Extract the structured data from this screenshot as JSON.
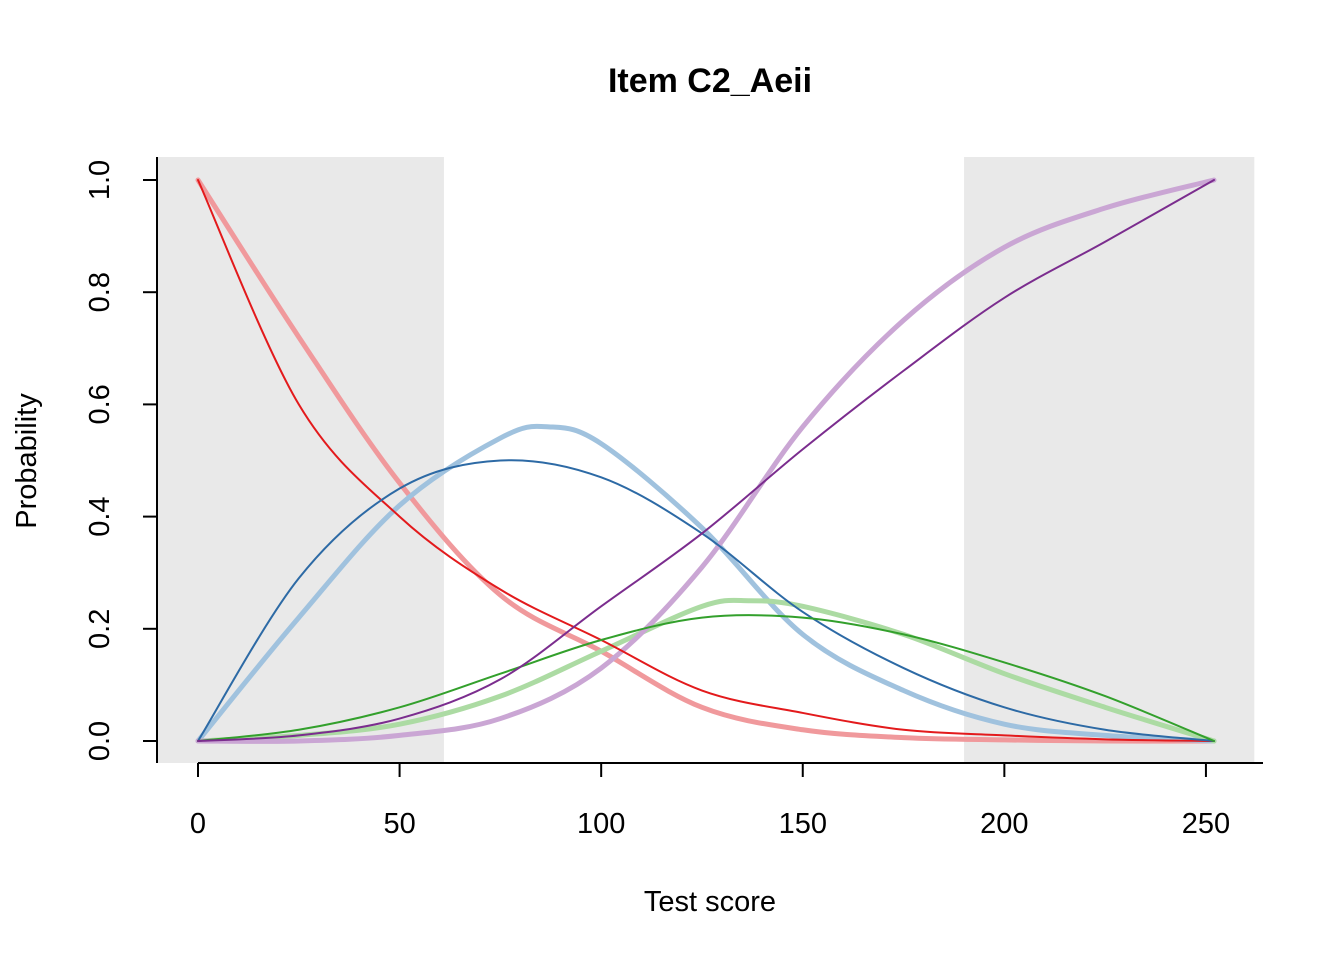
{
  "chart_data": {
    "type": "line",
    "title": "Item C2_Aeii",
    "xlabel": "Test score",
    "ylabel": "Probability",
    "xlim": [
      0,
      252
    ],
    "ylim": [
      0,
      1
    ],
    "xticks": [
      0,
      50,
      100,
      150,
      200,
      250
    ],
    "yticks": [
      0.0,
      0.2,
      0.4,
      0.6,
      0.8,
      1.0
    ],
    "ytick_labels": [
      "0.0",
      "0.2",
      "0.4",
      "0.6",
      "0.8",
      "1.0"
    ],
    "shaded_regions": [
      {
        "name": "low-score-band",
        "x_range": [
          -10,
          61
        ],
        "color": "#e9e9e9"
      },
      {
        "name": "high-score-band",
        "x_range": [
          190,
          262
        ],
        "color": "#e9e9e9"
      }
    ],
    "series": [
      {
        "name": "category-0-smooth",
        "color": "#f0999c",
        "style": "thick",
        "x": [
          0,
          25,
          50,
          75,
          100,
          125,
          150,
          175,
          200,
          225,
          252
        ],
        "values": [
          1.0,
          0.72,
          0.46,
          0.26,
          0.16,
          0.06,
          0.02,
          0.006,
          0.002,
          0.0,
          0.0
        ]
      },
      {
        "name": "category-0-fitted",
        "color": "#e31a1c",
        "style": "thin",
        "x": [
          0,
          25,
          50,
          75,
          100,
          125,
          150,
          175,
          200,
          225,
          252
        ],
        "values": [
          1.0,
          0.6,
          0.4,
          0.27,
          0.18,
          0.09,
          0.05,
          0.02,
          0.01,
          0.003,
          0.0
        ]
      },
      {
        "name": "category-1-smooth",
        "color": "#a0c2de",
        "style": "thick",
        "x": [
          0,
          25,
          50,
          75,
          87,
          100,
          125,
          150,
          175,
          200,
          225,
          252
        ],
        "values": [
          0.0,
          0.22,
          0.42,
          0.54,
          0.56,
          0.53,
          0.38,
          0.19,
          0.09,
          0.03,
          0.01,
          0.0
        ]
      },
      {
        "name": "category-1-fitted",
        "color": "#2d6aa5",
        "style": "thin",
        "x": [
          0,
          25,
          50,
          75,
          100,
          125,
          150,
          175,
          200,
          225,
          252
        ],
        "values": [
          0.0,
          0.29,
          0.45,
          0.5,
          0.47,
          0.37,
          0.23,
          0.13,
          0.06,
          0.02,
          0.0
        ]
      },
      {
        "name": "category-2-smooth",
        "color": "#acdba3",
        "style": "thick",
        "x": [
          0,
          25,
          50,
          75,
          100,
          125,
          137,
          150,
          175,
          200,
          225,
          252
        ],
        "values": [
          0.0,
          0.01,
          0.03,
          0.08,
          0.16,
          0.24,
          0.25,
          0.24,
          0.19,
          0.12,
          0.06,
          0.0
        ]
      },
      {
        "name": "category-2-fitted",
        "color": "#33a02c",
        "style": "thin",
        "x": [
          0,
          25,
          50,
          75,
          100,
          125,
          150,
          175,
          200,
          225,
          252
        ],
        "values": [
          0.0,
          0.02,
          0.06,
          0.12,
          0.18,
          0.22,
          0.22,
          0.19,
          0.14,
          0.08,
          0.0
        ]
      },
      {
        "name": "category-3-smooth",
        "color": "#caa6d4",
        "style": "thick",
        "x": [
          0,
          25,
          50,
          75,
          100,
          125,
          150,
          175,
          200,
          225,
          252
        ],
        "values": [
          0.0,
          0.0,
          0.01,
          0.04,
          0.13,
          0.31,
          0.56,
          0.75,
          0.88,
          0.95,
          1.0
        ]
      },
      {
        "name": "category-3-fitted",
        "color": "#7b2d8e",
        "style": "thin",
        "x": [
          0,
          25,
          50,
          75,
          100,
          125,
          150,
          175,
          200,
          225,
          252
        ],
        "values": [
          0.0,
          0.01,
          0.04,
          0.11,
          0.24,
          0.37,
          0.52,
          0.66,
          0.79,
          0.89,
          1.0
        ]
      }
    ]
  }
}
